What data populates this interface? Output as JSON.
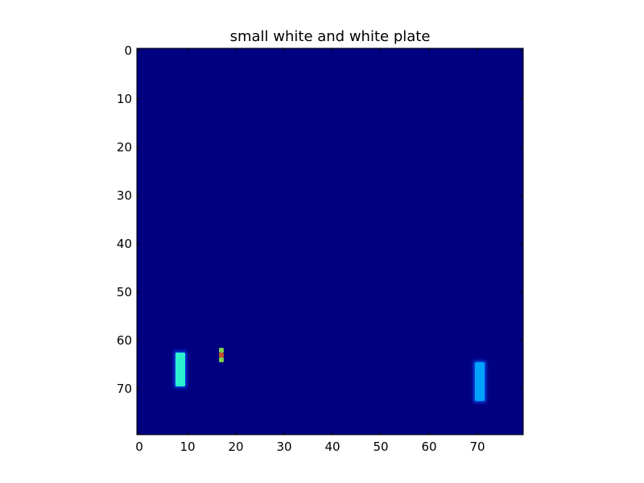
{
  "chart_data": {
    "type": "heatmap",
    "title": "small white and white plate",
    "colormap": "jet",
    "background_color": "#000080",
    "grid": false,
    "xlim": [
      -0.5,
      79.5
    ],
    "ylim": [
      79.5,
      -0.5
    ],
    "x_ticks": [
      0,
      10,
      20,
      30,
      40,
      50,
      60,
      70
    ],
    "y_ticks": [
      0,
      10,
      20,
      30,
      40,
      50,
      60,
      70
    ],
    "regions": [
      {
        "x": [
          8,
          9
        ],
        "y": [
          63,
          69
        ],
        "value": 0.42,
        "color": "#2af0d0",
        "glow": "#1050ff"
      },
      {
        "x": [
          70,
          71
        ],
        "y": [
          65,
          72
        ],
        "value": 0.32,
        "color": "#00a2ff",
        "glow": "#0a5cff"
      },
      {
        "x": [
          17,
          17
        ],
        "y": [
          62,
          62
        ],
        "value": 0.6,
        "color": "#7ad050"
      },
      {
        "x": [
          17,
          17
        ],
        "y": [
          63,
          63
        ],
        "value": 0.85,
        "color": "#c05030"
      },
      {
        "x": [
          17,
          17
        ],
        "y": [
          64,
          64
        ],
        "value": 0.6,
        "color": "#7ad050"
      }
    ]
  }
}
